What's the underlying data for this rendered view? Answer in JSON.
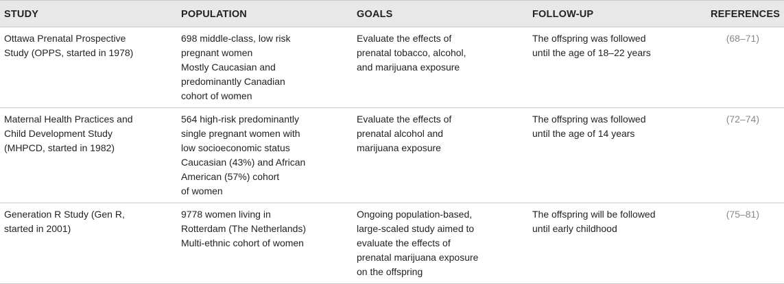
{
  "headers": [
    "STUDY",
    "POPULATION",
    "GOALS",
    "FOLLOW-UP",
    "REFERENCES"
  ],
  "rows": [
    {
      "study": [
        "Ottawa Prenatal Prospective",
        "Study (OPPS, started in 1978)"
      ],
      "population": [
        "698 middle-class, low risk",
        "pregnant women",
        "Mostly Caucasian and",
        "predominantly Canadian",
        "cohort of women"
      ],
      "goals": [
        "Evaluate the effects of",
        "prenatal tobacco, alcohol,",
        "and marijuana exposure"
      ],
      "followup": [
        "The offspring was followed",
        "until the age of 18–22 years"
      ],
      "references": "(68–71)"
    },
    {
      "study": [
        "Maternal Health Practices and",
        "Child Development Study",
        "(MHPCD, started in 1982)"
      ],
      "population": [
        "564 high-risk predominantly",
        "single pregnant women with",
        "low socioeconomic status",
        "Caucasian (43%) and African",
        "American (57%) cohort",
        "of women"
      ],
      "goals": [
        "Evaluate the effects of",
        "prenatal alcohol and",
        "marijuana exposure"
      ],
      "followup": [
        "The offspring was followed",
        "until the age of 14 years"
      ],
      "references": "(72–74)"
    },
    {
      "study": [
        "Generation R Study (Gen R,",
        "started in 2001)"
      ],
      "population": [
        "9778 women living in",
        "Rotterdam (The Netherlands)",
        "Multi-ethnic cohort of women"
      ],
      "goals": [
        "Ongoing population-based,",
        "large-scaled study aimed to",
        "evaluate the effects of",
        "prenatal marijuana exposure",
        "on the offspring"
      ],
      "followup": [
        "The offspring will be followed",
        "until early childhood"
      ],
      "references": "(75–81)"
    }
  ]
}
